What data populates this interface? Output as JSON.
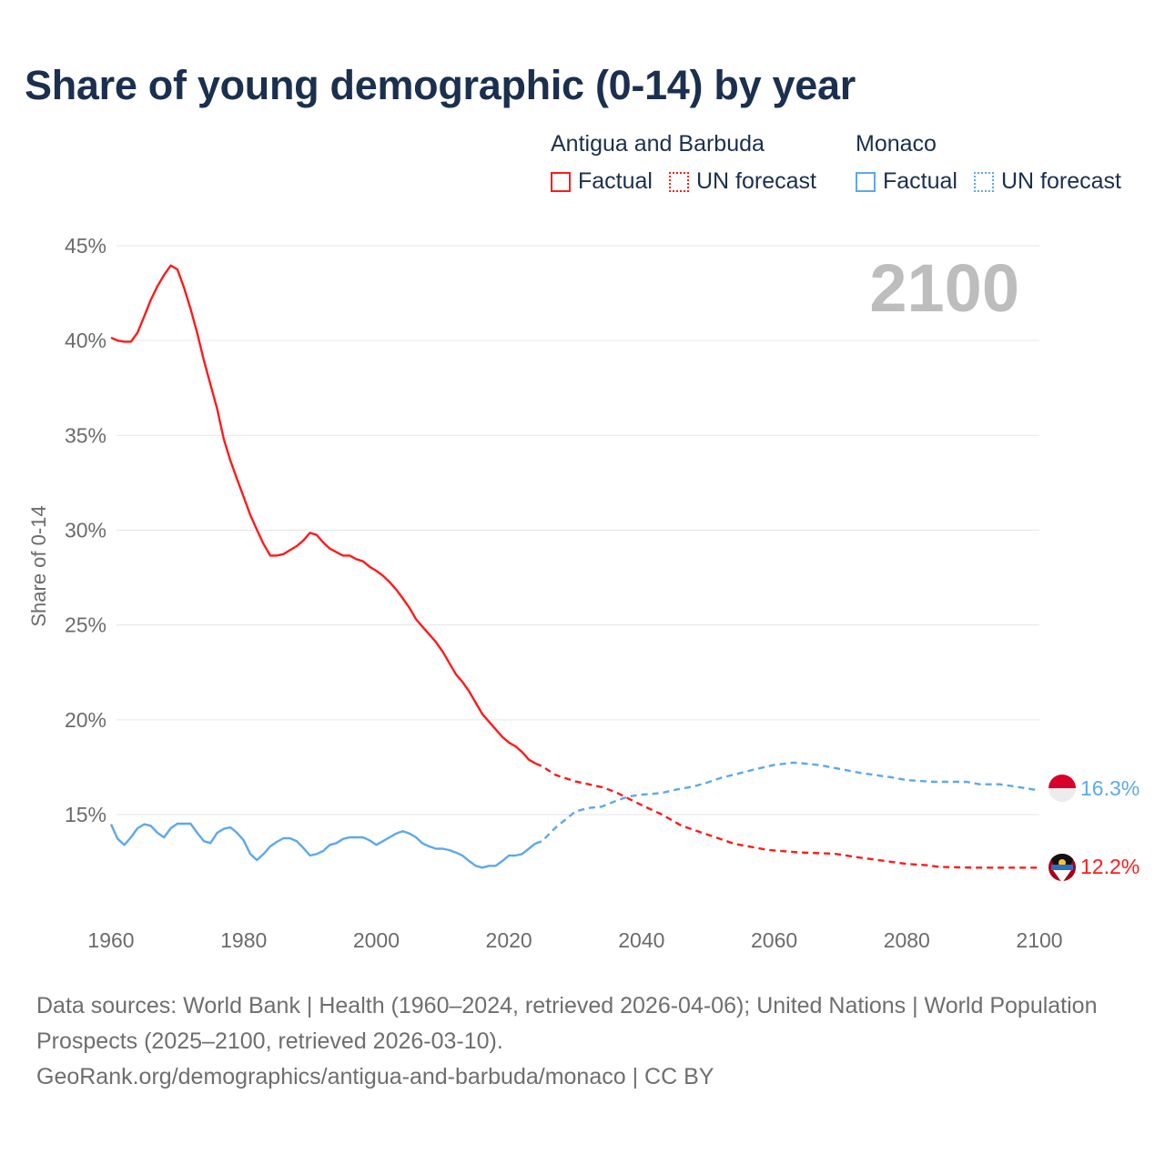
{
  "title": "Share of young demographic (0-14) by year",
  "legend": [
    {
      "country": "Antigua and Barbuda",
      "factual_label": "Factual",
      "forecast_label": "UN forecast",
      "color": "#ff1a1a"
    },
    {
      "country": "Monaco",
      "factual_label": "Factual",
      "forecast_label": "UN forecast",
      "color": "#5ea8ea"
    }
  ],
  "footer": {
    "sources": "Data sources: World Bank | Health (1960–2024, retrieved 2026-04-06); United Nations | World Population Prospects (2025–2100, retrieved 2026-03-10).",
    "credit": "GeoRank.org/demographics/antigua-and-barbuda/monaco | CC BY"
  },
  "chart_data": {
    "type": "line",
    "title": "Share of young demographic (0-14) by year",
    "xlabel": "",
    "ylabel": "Share of 0-14",
    "year_watermark": "2100",
    "xlim": [
      1960,
      2100
    ],
    "ylim": [
      10.5,
      45
    ],
    "xticks": [
      "1960",
      "1980",
      "2000",
      "2020",
      "2040",
      "2060",
      "2080",
      "2100"
    ],
    "yticks": [
      "15%",
      "20%",
      "25%",
      "30%",
      "35%",
      "40%",
      "45%"
    ],
    "grid": true,
    "series": [
      {
        "name": "Antigua and Barbuda",
        "color": "#ff1a1a",
        "end_label": "12.2%",
        "flag": "antigua-and-barbuda-flag",
        "factual": {
          "x": [
            1960,
            1961,
            1962,
            1963,
            1964,
            1965,
            1966,
            1967,
            1968,
            1969,
            1970,
            1971,
            1972,
            1973,
            1974,
            1975,
            1976,
            1977,
            1978,
            1979,
            1980,
            1981,
            1982,
            1983,
            1984,
            1985,
            1986,
            1987,
            1988,
            1989,
            1990,
            1991,
            1992,
            1993,
            1994,
            1995,
            1996,
            1997,
            1998,
            1999,
            2000,
            2001,
            2002,
            2003,
            2004,
            2005,
            2006,
            2007,
            2008,
            2009,
            2010,
            2011,
            2012,
            2013,
            2014,
            2015,
            2016,
            2017,
            2018,
            2019,
            2020,
            2021,
            2022,
            2023,
            2024
          ],
          "y": [
            40.15,
            40.0,
            39.94,
            39.94,
            40.42,
            41.27,
            42.15,
            42.87,
            43.46,
            43.96,
            43.75,
            42.8,
            41.67,
            40.39,
            38.95,
            37.67,
            36.4,
            34.8,
            33.67,
            32.7,
            31.75,
            30.8,
            30.02,
            29.27,
            28.66,
            28.66,
            28.74,
            28.95,
            29.16,
            29.46,
            29.86,
            29.75,
            29.35,
            29.03,
            28.84,
            28.66,
            28.66,
            28.47,
            28.36,
            28.07,
            27.86,
            27.6,
            27.27,
            26.87,
            26.4,
            25.9,
            25.3,
            24.9,
            24.5,
            24.1,
            23.6,
            23.0,
            22.4,
            22.0,
            21.5,
            20.9,
            20.3,
            19.9,
            19.5,
            19.1,
            18.8,
            18.6,
            18.3,
            17.9,
            17.7
          ]
        },
        "forecast": {
          "x": [
            2024,
            2025,
            2027,
            2030,
            2034,
            2036,
            2038,
            2040,
            2043,
            2046,
            2049,
            2054,
            2059,
            2064,
            2069,
            2073,
            2080,
            2083,
            2085,
            2090,
            2095,
            2100
          ],
          "y": [
            17.7,
            17.55,
            17.1,
            16.75,
            16.45,
            16.2,
            15.85,
            15.5,
            15.02,
            14.42,
            14.06,
            13.46,
            13.14,
            13.0,
            12.94,
            12.73,
            12.4,
            12.33,
            12.24,
            12.2,
            12.2,
            12.2
          ]
        }
      },
      {
        "name": "Monaco",
        "color": "#5ea8ea",
        "end_label": "16.3%",
        "flag": "monaco-flag",
        "factual": {
          "x": [
            1960,
            1961,
            1962,
            1963,
            1964,
            1965,
            1966,
            1967,
            1968,
            1969,
            1970,
            1971,
            1972,
            1973,
            1974,
            1975,
            1976,
            1977,
            1978,
            1979,
            1980,
            1981,
            1982,
            1983,
            1984,
            1985,
            1986,
            1987,
            1988,
            1989,
            1990,
            1991,
            1992,
            1993,
            1994,
            1995,
            1996,
            1997,
            1998,
            1999,
            2000,
            2001,
            2002,
            2003,
            2004,
            2005,
            2006,
            2007,
            2008,
            2009,
            2010,
            2011,
            2012,
            2013,
            2014,
            2015,
            2016,
            2017,
            2018,
            2019,
            2020,
            2021,
            2022,
            2023,
            2024
          ],
          "y": [
            14.49,
            13.72,
            13.4,
            13.8,
            14.28,
            14.49,
            14.41,
            14.04,
            13.8,
            14.28,
            14.52,
            14.52,
            14.52,
            14.04,
            13.6,
            13.5,
            14.04,
            14.25,
            14.33,
            14.04,
            13.64,
            12.92,
            12.6,
            12.92,
            13.32,
            13.56,
            13.75,
            13.75,
            13.6,
            13.24,
            12.84,
            12.92,
            13.08,
            13.4,
            13.5,
            13.72,
            13.8,
            13.8,
            13.8,
            13.64,
            13.4,
            13.6,
            13.8,
            14.0,
            14.12,
            14.0,
            13.8,
            13.48,
            13.32,
            13.2,
            13.2,
            13.13,
            13.0,
            12.84,
            12.55,
            12.3,
            12.2,
            12.3,
            12.3,
            12.55,
            12.84,
            12.84,
            12.92,
            13.2,
            13.48
          ]
        },
        "forecast": {
          "x": [
            2024,
            2025,
            2027,
            2030,
            2032,
            2034,
            2036,
            2038,
            2040,
            2043,
            2045,
            2048,
            2050,
            2052,
            2055,
            2057,
            2060,
            2063,
            2065,
            2067,
            2070,
            2073,
            2075,
            2078,
            2080,
            2084,
            2089,
            2091,
            2094,
            2096,
            2099,
            2100
          ],
          "y": [
            13.48,
            13.6,
            14.3,
            15.16,
            15.35,
            15.42,
            15.7,
            15.95,
            16.05,
            16.14,
            16.3,
            16.5,
            16.7,
            16.94,
            17.2,
            17.38,
            17.62,
            17.74,
            17.68,
            17.6,
            17.4,
            17.2,
            17.1,
            16.95,
            16.82,
            16.73,
            16.73,
            16.6,
            16.6,
            16.5,
            16.33,
            16.3
          ]
        }
      }
    ]
  }
}
